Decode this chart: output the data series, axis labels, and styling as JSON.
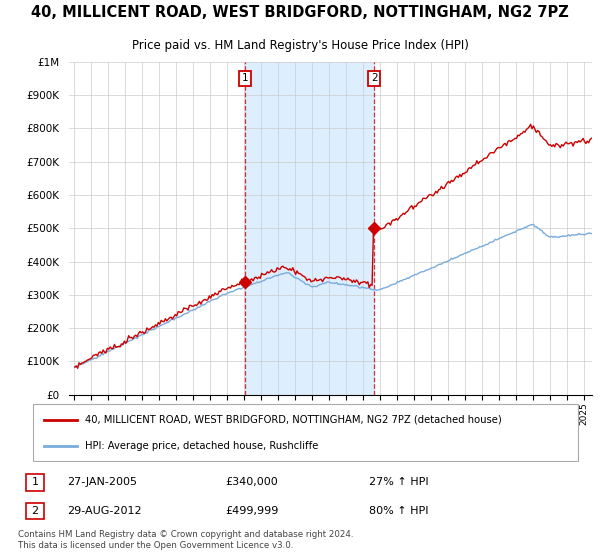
{
  "title": "40, MILLICENT ROAD, WEST BRIDGFORD, NOTTINGHAM, NG2 7PZ",
  "subtitle": "Price paid vs. HM Land Registry's House Price Index (HPI)",
  "legend_line1": "40, MILLICENT ROAD, WEST BRIDGFORD, NOTTINGHAM, NG2 7PZ (detached house)",
  "legend_line2": "HPI: Average price, detached house, Rushcliffe",
  "footer": "Contains HM Land Registry data © Crown copyright and database right 2024.\nThis data is licensed under the Open Government Licence v3.0.",
  "sale1_date": "27-JAN-2005",
  "sale1_price": 340000,
  "sale1_note": "27% ↑ HPI",
  "sale2_date": "29-AUG-2012",
  "sale2_price": 499999,
  "sale2_note": "80% ↑ HPI",
  "sale1_x": 2005.07,
  "sale2_x": 2012.66,
  "ylim": [
    0,
    1000000
  ],
  "xlim": [
    1994.7,
    2025.5
  ],
  "background_color": "#ffffff",
  "hpi_color": "#7aacdc",
  "house_color": "#cc0000",
  "dashed_color": "#cc0000",
  "shade_color": "#ddeeff",
  "yticks": [
    0,
    100000,
    200000,
    300000,
    400000,
    500000,
    600000,
    700000,
    800000,
    900000,
    1000000
  ],
  "ytick_labels": [
    "£0",
    "£100K",
    "£200K",
    "£300K",
    "£400K",
    "£500K",
    "£600K",
    "£700K",
    "£800K",
    "£900K",
    "£1M"
  ]
}
